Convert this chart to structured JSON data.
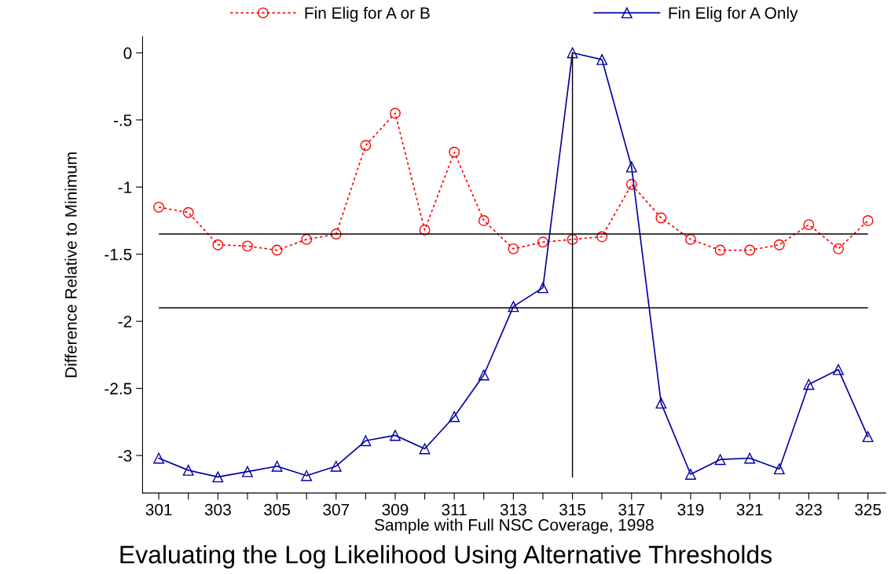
{
  "chart_data": {
    "type": "line",
    "title": "Evaluating the Log Likelihood Using Alternative Thresholds",
    "xlabel": "Sample with Full NSC Coverage, 1998",
    "ylabel": "Difference Relative to Minimum",
    "x": [
      301,
      302,
      303,
      304,
      305,
      306,
      307,
      308,
      309,
      310,
      311,
      312,
      313,
      314,
      315,
      316,
      317,
      318,
      319,
      320,
      321,
      322,
      323,
      324,
      325
    ],
    "series": [
      {
        "name": "Fin Elig for A or B",
        "color": "#ff0000",
        "marker": "circle",
        "line_style": "dotted",
        "values": [
          -1.15,
          -1.19,
          -1.43,
          -1.44,
          -1.47,
          -1.39,
          -1.35,
          -0.69,
          -0.45,
          -1.32,
          -0.74,
          -1.25,
          -1.46,
          -1.41,
          -1.39,
          -1.37,
          -0.98,
          -1.23,
          -1.39,
          -1.47,
          -1.47,
          -1.43,
          -1.28,
          -1.46,
          -1.25
        ]
      },
      {
        "name": "Fin Elig for A Only",
        "color": "#0000a0",
        "marker": "triangle",
        "line_style": "solid",
        "values": [
          -3.02,
          -3.11,
          -3.16,
          -3.12,
          -3.08,
          -3.15,
          -3.08,
          -2.89,
          -2.85,
          -2.95,
          -2.71,
          -2.4,
          -1.89,
          -1.75,
          0,
          -0.05,
          -0.85,
          -2.61,
          -3.14,
          -3.03,
          -3.02,
          -3.1,
          -2.47,
          -2.36,
          -2.86
        ]
      }
    ],
    "ref_lines": [
      {
        "axis": "y",
        "value": -1.35,
        "color": "#000000"
      },
      {
        "axis": "y",
        "value": -1.9,
        "color": "#000000"
      },
      {
        "axis": "x",
        "value": 315,
        "color": "#000000"
      }
    ],
    "xlim": [
      300.45,
      325.6
    ],
    "ylim": [
      -3.28,
      0.12
    ],
    "xticks": [
      301,
      {
        "value": 302,
        "label": null
      },
      303,
      {
        "value": 304,
        "label": null
      },
      305,
      {
        "value": 306,
        "label": null
      },
      307,
      {
        "value": 308,
        "label": null
      },
      309,
      {
        "value": 310,
        "label": null
      },
      311,
      {
        "value": 312,
        "label": null
      },
      313,
      {
        "value": 314,
        "label": null
      },
      315,
      {
        "value": 316,
        "label": null
      },
      317,
      {
        "value": 318,
        "label": null
      },
      319,
      {
        "value": 320,
        "label": null
      },
      321,
      {
        "value": 322,
        "label": null
      },
      323,
      {
        "value": 324,
        "label": null
      },
      325
    ],
    "yticks": [
      0,
      {
        "value": -0.5,
        "label": "-.5"
      },
      -1,
      -1.5,
      -2,
      -2.5,
      -3
    ],
    "grid": false,
    "legend": "top"
  }
}
